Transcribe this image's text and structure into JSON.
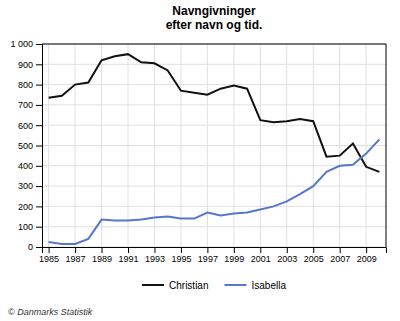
{
  "chart_data": {
    "type": "line",
    "title": "Navngivninger\nefter navn og tid.",
    "annotations": [
      "© Danmarks Statistik"
    ],
    "x": [
      1985,
      1986,
      1987,
      1988,
      1989,
      1990,
      1991,
      1992,
      1993,
      1994,
      1995,
      1996,
      1997,
      1998,
      1999,
      2000,
      2001,
      2002,
      2003,
      2004,
      2005,
      2006,
      2007,
      2008,
      2009,
      2010
    ],
    "series": [
      {
        "name": "Christian",
        "color": "#111111",
        "values": [
          735,
          745,
          800,
          810,
          920,
          940,
          950,
          910,
          905,
          870,
          770,
          760,
          750,
          780,
          795,
          780,
          625,
          615,
          620,
          630,
          620,
          445,
          450,
          510,
          395,
          370
        ]
      },
      {
        "name": "Isabella",
        "color": "#5577cc",
        "values": [
          25,
          15,
          15,
          40,
          135,
          130,
          130,
          135,
          145,
          150,
          140,
          140,
          170,
          155,
          165,
          170,
          185,
          200,
          225,
          260,
          300,
          370,
          400,
          405,
          460,
          530
        ]
      }
    ],
    "xlim": [
      1984.5,
      2010.5
    ],
    "xticks": [
      1985,
      1987,
      1989,
      1991,
      1993,
      1995,
      1997,
      1999,
      2001,
      2003,
      2005,
      2007,
      2009
    ],
    "ylim": [
      0,
      1000
    ],
    "yticks": [
      0,
      100,
      200,
      300,
      400,
      500,
      600,
      700,
      800,
      900,
      {
        "value": 1000,
        "label": "1 000"
      }
    ],
    "grid": true,
    "legend": "bottom"
  }
}
